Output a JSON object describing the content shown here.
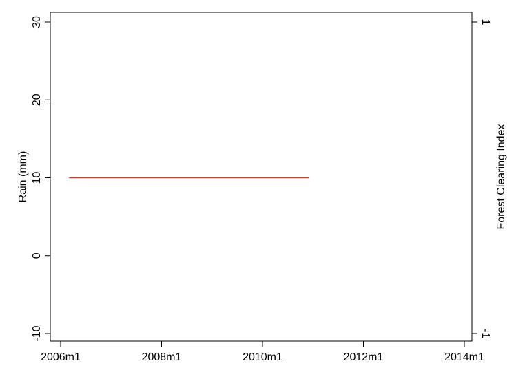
{
  "chart_data": {
    "type": "line",
    "title": "",
    "xlabel": "",
    "ylabel": "Rain (mm)",
    "y2label": "Forest Clearing Index",
    "x_ticks": [
      "2006m1",
      "2008m1",
      "2010m1",
      "2012m1",
      "2014m1"
    ],
    "xlim": [
      "2006m1",
      "2014m1"
    ],
    "ylim": [
      -10,
      30
    ],
    "y_ticks": [
      "-10",
      "0",
      "10",
      "20",
      "30"
    ],
    "y2lim": [
      -1,
      1
    ],
    "y2_ticks": [
      "-1",
      "1"
    ],
    "grid": false,
    "series": [
      {
        "color": "#e8321e",
        "x": [
          "2006m3",
          "2010m12"
        ],
        "y": [
          10,
          10
        ]
      }
    ]
  }
}
